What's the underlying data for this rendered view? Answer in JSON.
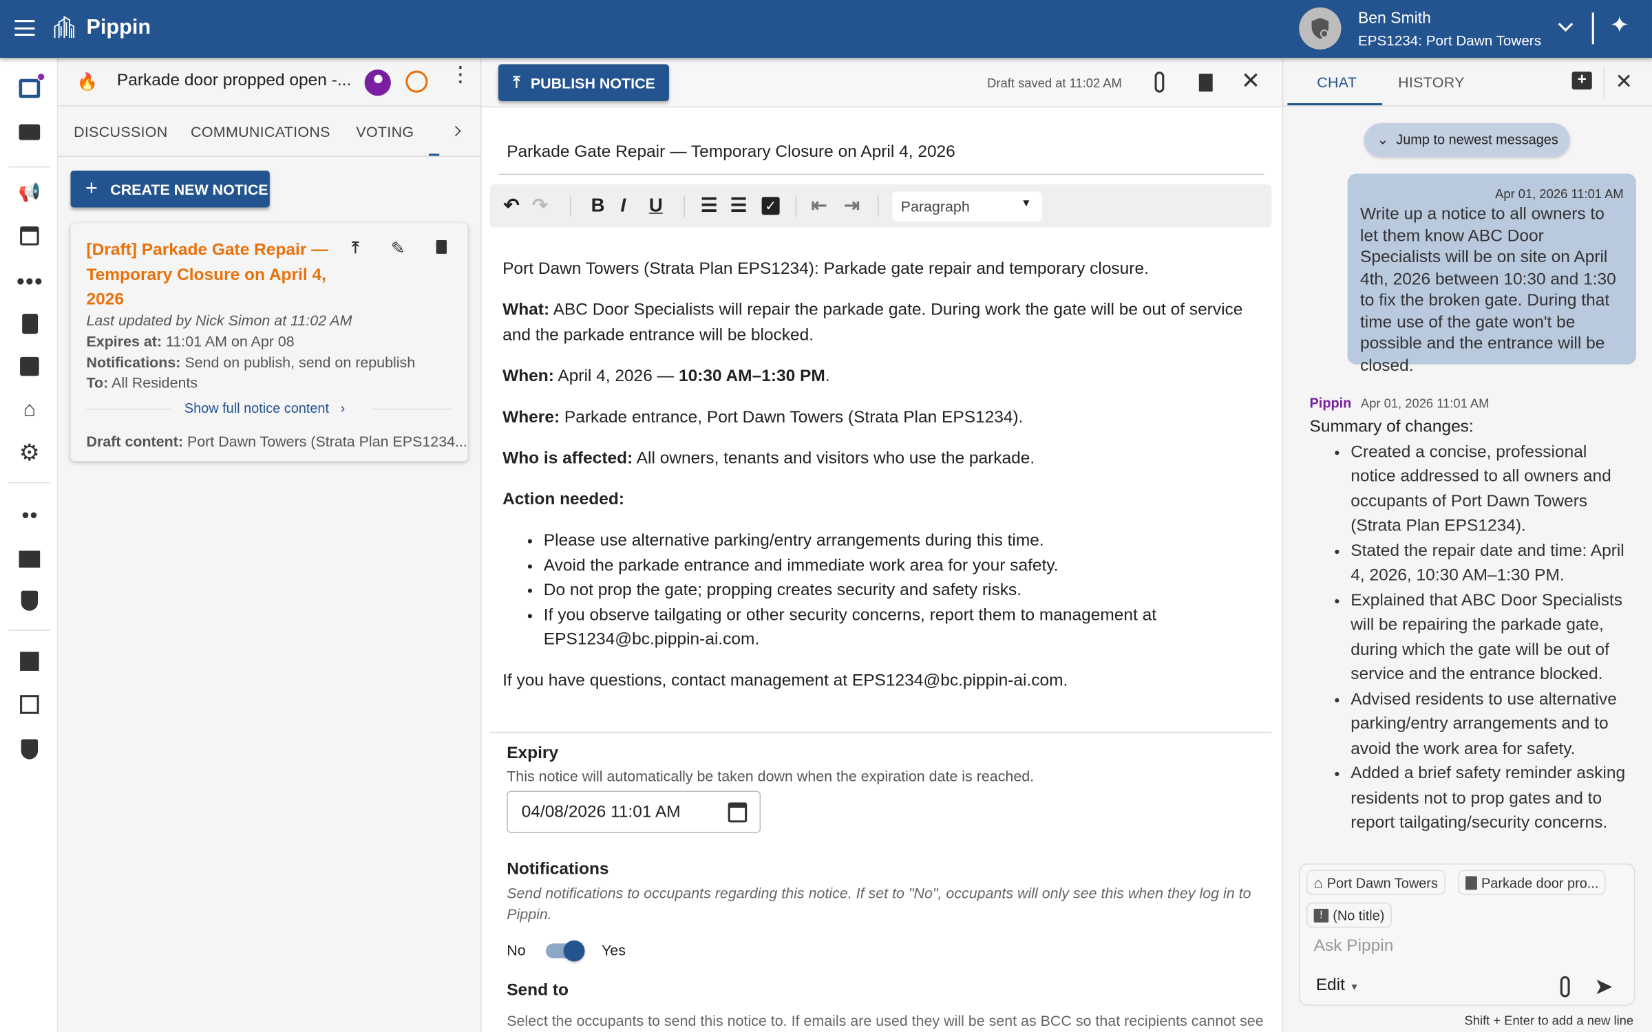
{
  "topbar": {
    "app_name": "Pippin",
    "user_name": "Ben Smith",
    "building": "EPS1234: Port Dawn Towers",
    "brand_color": "#24548f"
  },
  "thread": {
    "title": "Parkade door propped open -...",
    "tabs": [
      "DISCUSSION",
      "COMMUNICATIONS",
      "VOTING"
    ]
  },
  "notices": {
    "create_label": "CREATE NEW NOTICE",
    "card": {
      "title": "[Draft] Parkade Gate Repair — Temporary Closure on April 4, 2026",
      "updated": "Last updated by Nick Simon at 11:02 AM",
      "expires_label": "Expires at:",
      "expires_value": "11:01 AM on Apr 08",
      "notif_label": "Notifications:",
      "notif_value": "Send on publish, send on republish",
      "to_label": "To:",
      "to_value": "All Residents",
      "show_full": "Show full notice content",
      "draft_label": "Draft content:",
      "draft_value": "Port Dawn Towers (Strata Plan EPS1234..."
    }
  },
  "editor": {
    "publish_label": "PUBLISH NOTICE",
    "saved_status": "Draft saved at 11:02 AM",
    "title": "Parkade Gate Repair — Temporary Closure on April 4, 2026",
    "block_format": "Paragraph",
    "intro": "Port Dawn Towers (Strata Plan EPS1234): Parkade gate repair and temporary closure.",
    "what_label": "What:",
    "what": "ABC Door Specialists will repair the parkade gate. During work the gate will be out of service and the parkade entrance will be blocked.",
    "when_label": "When:",
    "when_date": "April 4, 2026 —",
    "when_time": "10:30 AM–1:30 PM",
    "where_label": "Where:",
    "where": "Parkade entrance, Port Dawn Towers (Strata Plan EPS1234).",
    "who_label": "Who is affected:",
    "who": "All owners, tenants and visitors who use the parkade.",
    "action_label": "Action needed:",
    "actions": [
      "Please use alternative parking/entry arrangements during this time.",
      "Avoid the parkade entrance and immediate work area for your safety.",
      "Do not prop the gate; propping creates security and safety risks.",
      "If you observe tailgating or other security concerns, report them to management at EPS1234@bc.pippin-ai.com."
    ],
    "closing": "If you have questions, contact management at EPS1234@bc.pippin-ai.com.",
    "expiry_heading": "Expiry",
    "expiry_desc": "This notice will automatically be taken down when the expiration date is reached.",
    "expiry_value": "04/08/2026 11:01 AM",
    "notif_heading": "Notifications",
    "notif_desc": "Send notifications to occupants regarding this notice. If set to \"No\", occupants will only see this when they log in to Pippin.",
    "toggle_no": "No",
    "toggle_yes": "Yes",
    "notifications_enabled": true,
    "sendto_heading": "Send to",
    "sendto_desc": "Select the occupants to send this notice to. If emails are used they will be sent as BCC so that recipients cannot see"
  },
  "chat": {
    "tabs": [
      "CHAT",
      "HISTORY"
    ],
    "jump_label": "Jump to newest messages",
    "user_msg": {
      "time": "Apr 01, 2026 11:01 AM",
      "text": "Write up a notice to all owners to let them know ABC Door Specialists will be on site on April 4th, 2026 between 10:30 and 1:30 to fix the broken gate. During that time use of the gate won't be possible and the entrance will be closed."
    },
    "bot_msg": {
      "sender": "Pippin",
      "time": "Apr 01, 2026 11:01 AM",
      "heading": "Summary of changes:",
      "items": [
        "Created a concise, professional notice addressed to all owners and occupants of Port Dawn Towers (Strata Plan EPS1234).",
        "Stated the repair date and time: April 4, 2026, 10:30 AM–1:30 PM.",
        "Explained that ABC Door Specialists will be repairing the parkade gate, during which the gate will be out of service and the entrance blocked.",
        "Advised residents to use alternative parking/entry arrangements and to avoid the work area for safety.",
        "Added a brief safety reminder asking residents not to prop gates and to report tailgating/security concerns."
      ]
    },
    "context_chips": [
      "Port Dawn Towers",
      "Parkade door pro...",
      "(No title)"
    ],
    "input_placeholder": "Ask Pippin",
    "mode": "Edit",
    "hint": "Shift + Enter to add a new line"
  }
}
